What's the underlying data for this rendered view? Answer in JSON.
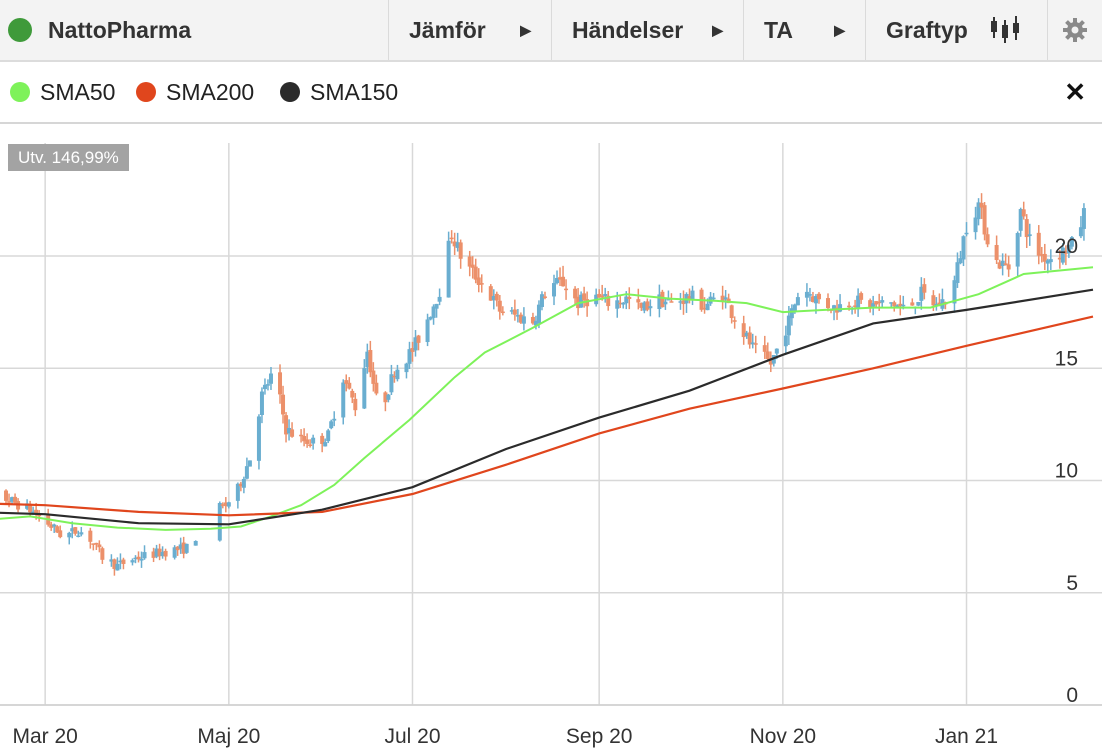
{
  "toolbar": {
    "title": "NattoPharma",
    "status_color": "#3f9a3a",
    "items": [
      {
        "label": "Jämför",
        "icon": "play-icon"
      },
      {
        "label": "Händelser",
        "icon": "play-icon"
      },
      {
        "label": "TA",
        "icon": "play-icon"
      },
      {
        "label": "Graftyp",
        "icon": "candlestick-icon"
      }
    ],
    "settings_icon": "gear-icon"
  },
  "legend": {
    "items": [
      {
        "label": "SMA50",
        "color": "#7ef25a"
      },
      {
        "label": "SMA200",
        "color": "#e0461d"
      },
      {
        "label": "SMA150",
        "color": "#2b2b2b"
      }
    ],
    "close_icon": "close-icon",
    "close_label": "✕"
  },
  "badge": "Utv. 146,99%",
  "chart_data": {
    "type": "candlestick",
    "xlabel": "",
    "ylabel": "",
    "x_ticks": [
      "Mar 20",
      "Maj 20",
      "Jul 20",
      "Sep 20",
      "Nov 20",
      "Jan 21"
    ],
    "y_ticks": [
      0,
      5,
      10,
      15,
      20
    ],
    "ylim": [
      0,
      24.5
    ],
    "grid": true,
    "up_color": "#6aaed0",
    "down_color": "#ec906a",
    "price_path": [
      [
        "2020-02-05",
        9.0
      ],
      [
        "2020-02-15",
        9.3
      ],
      [
        "2020-02-25",
        8.7
      ],
      [
        "2020-03-01",
        8.2
      ],
      [
        "2020-03-07",
        7.5
      ],
      [
        "2020-03-12",
        7.8
      ],
      [
        "2020-03-16",
        7.4
      ],
      [
        "2020-03-20",
        6.6
      ],
      [
        "2020-03-25",
        6.2
      ],
      [
        "2020-03-30",
        6.5
      ],
      [
        "2020-04-05",
        6.7
      ],
      [
        "2020-04-12",
        6.9
      ],
      [
        "2020-04-18",
        7.0
      ],
      [
        "2020-04-24",
        8.5
      ],
      [
        "2020-04-30",
        8.9
      ],
      [
        "2020-05-04",
        9.6
      ],
      [
        "2020-05-08",
        11.0
      ],
      [
        "2020-05-12",
        13.8
      ],
      [
        "2020-05-16",
        14.9
      ],
      [
        "2020-05-20",
        12.3
      ],
      [
        "2020-05-25",
        11.8
      ],
      [
        "2020-05-30",
        11.7
      ],
      [
        "2020-06-03",
        12.0
      ],
      [
        "2020-06-08",
        14.6
      ],
      [
        "2020-06-12",
        13.3
      ],
      [
        "2020-06-16",
        15.8
      ],
      [
        "2020-06-20",
        12.9
      ],
      [
        "2020-06-25",
        14.9
      ],
      [
        "2020-07-01",
        15.8
      ],
      [
        "2020-07-05",
        16.9
      ],
      [
        "2020-07-10",
        18.5
      ],
      [
        "2020-07-14",
        21.0
      ],
      [
        "2020-07-18",
        19.7
      ],
      [
        "2020-07-24",
        18.8
      ],
      [
        "2020-07-30",
        17.6
      ],
      [
        "2020-08-05",
        17.3
      ],
      [
        "2020-08-10",
        17.1
      ],
      [
        "2020-08-15",
        18.7
      ],
      [
        "2020-08-20",
        18.8
      ],
      [
        "2020-08-25",
        17.9
      ],
      [
        "2020-08-30",
        18.2
      ],
      [
        "2020-09-05",
        17.9
      ],
      [
        "2020-09-10",
        18.1
      ],
      [
        "2020-09-15",
        17.6
      ],
      [
        "2020-09-20",
        18.1
      ],
      [
        "2020-09-25",
        17.9
      ],
      [
        "2020-10-01",
        18.2
      ],
      [
        "2020-10-06",
        17.8
      ],
      [
        "2020-10-12",
        18.3
      ],
      [
        "2020-10-17",
        17.0
      ],
      [
        "2020-10-22",
        15.9
      ],
      [
        "2020-10-28",
        15.2
      ],
      [
        "2020-11-03",
        17.1
      ],
      [
        "2020-11-07",
        18.7
      ],
      [
        "2020-11-12",
        18.1
      ],
      [
        "2020-11-18",
        17.7
      ],
      [
        "2020-11-24",
        18.0
      ],
      [
        "2020-12-01",
        17.8
      ],
      [
        "2020-12-07",
        17.9
      ],
      [
        "2020-12-12",
        17.6
      ],
      [
        "2020-12-17",
        18.3
      ],
      [
        "2020-12-22",
        17.8
      ],
      [
        "2020-12-27",
        18.2
      ],
      [
        "2021-01-01",
        21.4
      ],
      [
        "2021-01-05",
        22.3
      ],
      [
        "2021-01-10",
        19.8
      ],
      [
        "2021-01-15",
        19.5
      ],
      [
        "2021-01-19",
        22.0
      ],
      [
        "2021-01-23",
        20.3
      ],
      [
        "2021-01-28",
        19.9
      ],
      [
        "2021-02-02",
        20.2
      ],
      [
        "2021-02-06",
        20.6
      ],
      [
        "2021-02-10",
        22.3
      ]
    ],
    "series": [
      {
        "name": "SMA50",
        "color": "#7ef25a",
        "points": [
          [
            "2020-02-05",
            8.1
          ],
          [
            "2020-02-15",
            8.3
          ],
          [
            "2020-02-25",
            8.4
          ],
          [
            "2020-03-10",
            8.1
          ],
          [
            "2020-03-25",
            7.9
          ],
          [
            "2020-04-10",
            7.8
          ],
          [
            "2020-04-25",
            7.85
          ],
          [
            "2020-05-05",
            7.95
          ],
          [
            "2020-05-15",
            8.4
          ],
          [
            "2020-05-25",
            8.9
          ],
          [
            "2020-06-05",
            9.8
          ],
          [
            "2020-06-15",
            11.0
          ],
          [
            "2020-06-30",
            12.7
          ],
          [
            "2020-07-15",
            14.6
          ],
          [
            "2020-07-25",
            15.7
          ],
          [
            "2020-08-10",
            16.8
          ],
          [
            "2020-08-25",
            17.9
          ],
          [
            "2020-09-10",
            18.3
          ],
          [
            "2020-09-25",
            18.1
          ],
          [
            "2020-10-10",
            18.0
          ],
          [
            "2020-10-20",
            17.9
          ],
          [
            "2020-11-01",
            17.5
          ],
          [
            "2020-11-15",
            17.6
          ],
          [
            "2020-12-01",
            17.7
          ],
          [
            "2020-12-20",
            17.7
          ],
          [
            "2021-01-05",
            18.3
          ],
          [
            "2021-01-20",
            19.2
          ],
          [
            "2021-02-12",
            19.5
          ]
        ]
      },
      {
        "name": "SMA200",
        "color": "#e0461d",
        "points": [
          [
            "2020-02-05",
            9.0
          ],
          [
            "2020-03-01",
            8.9
          ],
          [
            "2020-04-01",
            8.6
          ],
          [
            "2020-05-01",
            8.45
          ],
          [
            "2020-06-01",
            8.6
          ],
          [
            "2020-07-01",
            9.4
          ],
          [
            "2020-08-01",
            10.7
          ],
          [
            "2020-09-01",
            12.1
          ],
          [
            "2020-10-01",
            13.2
          ],
          [
            "2020-11-01",
            14.1
          ],
          [
            "2020-12-01",
            15.0
          ],
          [
            "2021-01-01",
            16.0
          ],
          [
            "2021-02-12",
            17.3
          ]
        ]
      },
      {
        "name": "SMA150",
        "color": "#2b2b2b",
        "points": [
          [
            "2020-02-05",
            8.6
          ],
          [
            "2020-03-01",
            8.5
          ],
          [
            "2020-04-01",
            8.1
          ],
          [
            "2020-05-01",
            8.05
          ],
          [
            "2020-06-01",
            8.7
          ],
          [
            "2020-07-01",
            9.7
          ],
          [
            "2020-08-01",
            11.4
          ],
          [
            "2020-09-01",
            12.8
          ],
          [
            "2020-10-01",
            14.0
          ],
          [
            "2020-11-01",
            15.6
          ],
          [
            "2020-12-01",
            17.0
          ],
          [
            "2021-01-01",
            17.6
          ],
          [
            "2021-02-12",
            18.5
          ]
        ]
      }
    ]
  }
}
